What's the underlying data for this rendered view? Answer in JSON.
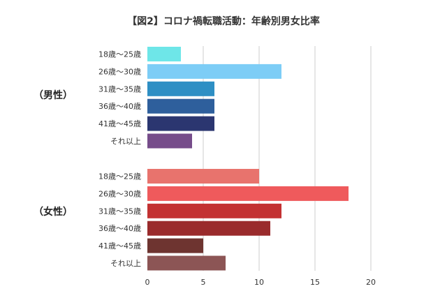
{
  "chart_data": {
    "type": "bar",
    "orientation": "horizontal",
    "title": "【図2】コロナ禍転職活動：年齢別男女比率",
    "xlim": [
      0,
      20
    ],
    "x_ticks": [
      0,
      5,
      10,
      15,
      20
    ],
    "grid": true,
    "groups": [
      {
        "label": "（男性）",
        "categories": [
          "18歳〜25歳",
          "26歳〜30歳",
          "31歳〜35歳",
          "36歳〜40歳",
          "41歳〜45歳",
          "それ以上"
        ],
        "values": [
          3,
          12,
          6,
          6,
          6,
          4
        ],
        "colors": [
          "#6ee6e8",
          "#7dcdf6",
          "#2e8fc4",
          "#2e5f9c",
          "#2b3670",
          "#764c8a"
        ]
      },
      {
        "label": "（女性）",
        "categories": [
          "18歳〜25歳",
          "26歳〜30歳",
          "31歳〜35歳",
          "36歳〜40歳",
          "41歳〜45歳",
          "それ以上"
        ],
        "values": [
          10,
          18,
          12,
          11,
          5,
          7
        ],
        "colors": [
          "#e8736d",
          "#ef5a5c",
          "#c33132",
          "#9a2b2c",
          "#6e3430",
          "#8c5555"
        ]
      }
    ]
  }
}
